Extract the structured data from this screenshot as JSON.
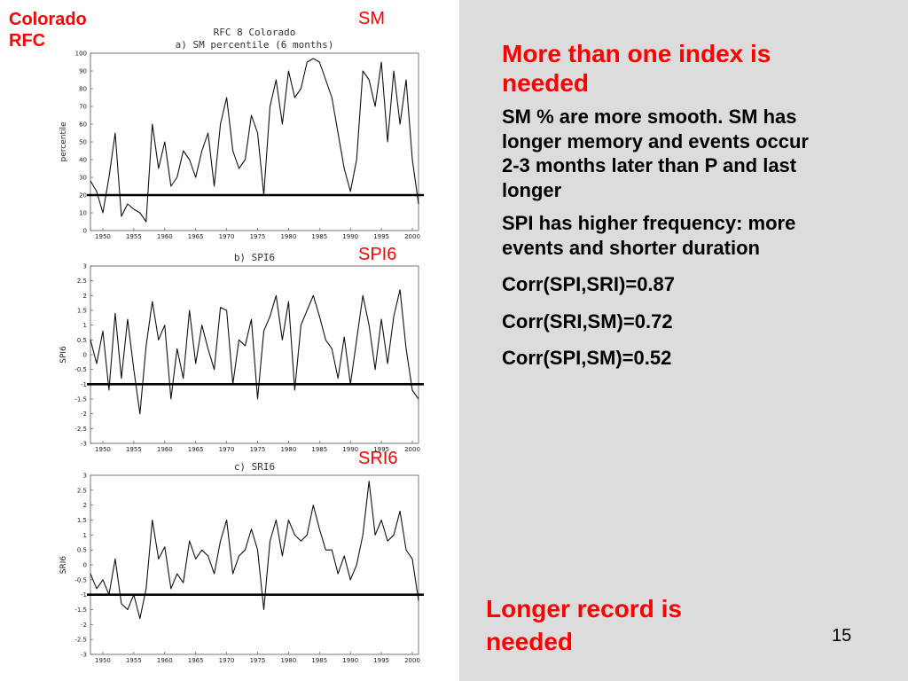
{
  "slide": {
    "rfc_label_1": "Colorado",
    "rfc_label_2": "RFC",
    "tag_sm": "SM",
    "tag_spi": "SPI6",
    "tag_sri": "SRI6",
    "heading": "More than one index is needed",
    "para1": "SM % are more smooth. SM has longer memory and events occur 2-3 months later than P  and last longer",
    "para2": "SPI has higher frequency: more events and shorter duration",
    "corr1": "Corr(SPI,SRI)=0.87",
    "corr2": "Corr(SRI,SM)=0.72",
    "corr3": "Corr(SPI,SM)=0.52",
    "footer": "Longer record is needed",
    "page_number": "15",
    "accent_color": "#ff0000",
    "panel_color": "#dcdcdc"
  },
  "chart_data": [
    {
      "type": "line",
      "title": "RFC 8 Colorado",
      "subtitle": "a)  SM  percentile (6 months)",
      "ylabel": "percentile",
      "xlabel": "",
      "xlim": [
        1948,
        2001
      ],
      "ylim": [
        0,
        100
      ],
      "yticks": [
        0,
        10,
        20,
        30,
        40,
        50,
        60,
        70,
        80,
        90,
        100
      ],
      "xticks": [
        1950,
        1955,
        1960,
        1965,
        1970,
        1975,
        1980,
        1985,
        1990,
        1995,
        2000
      ],
      "threshold": 20,
      "grid": false,
      "x": [
        1948,
        1949,
        1950,
        1951,
        1952,
        1953,
        1954,
        1955,
        1956,
        1957,
        1958,
        1959,
        1960,
        1961,
        1962,
        1963,
        1964,
        1965,
        1966,
        1967,
        1968,
        1969,
        1970,
        1971,
        1972,
        1973,
        1974,
        1975,
        1976,
        1977,
        1978,
        1979,
        1980,
        1981,
        1982,
        1983,
        1984,
        1985,
        1986,
        1987,
        1988,
        1989,
        1990,
        1991,
        1992,
        1993,
        1994,
        1995,
        1996,
        1997,
        1998,
        1999,
        2000,
        2001
      ],
      "series": [
        {
          "values": [
            28,
            22,
            10,
            30,
            55,
            8,
            15,
            12,
            10,
            5,
            60,
            35,
            50,
            25,
            30,
            45,
            40,
            30,
            45,
            55,
            25,
            60,
            75,
            45,
            35,
            40,
            65,
            55,
            20,
            70,
            85,
            60,
            90,
            75,
            80,
            95,
            97,
            95,
            85,
            75,
            55,
            35,
            22,
            40,
            90,
            85,
            70,
            95,
            50,
            90,
            60,
            85,
            40,
            15
          ]
        }
      ]
    },
    {
      "type": "line",
      "title": "",
      "subtitle": "b)  SPI6",
      "ylabel": "SPI6",
      "xlabel": "",
      "xlim": [
        1948,
        2001
      ],
      "ylim": [
        -3,
        3
      ],
      "yticks": [
        -3,
        -2.5,
        -2,
        -1.5,
        -1,
        -0.5,
        0,
        0.5,
        1,
        1.5,
        2,
        2.5,
        3
      ],
      "xticks": [
        1950,
        1955,
        1960,
        1965,
        1970,
        1975,
        1980,
        1985,
        1990,
        1995,
        2000
      ],
      "threshold": -1,
      "grid": false,
      "x": [
        1948,
        1949,
        1950,
        1951,
        1952,
        1953,
        1954,
        1955,
        1956,
        1957,
        1958,
        1959,
        1960,
        1961,
        1962,
        1963,
        1964,
        1965,
        1966,
        1967,
        1968,
        1969,
        1970,
        1971,
        1972,
        1973,
        1974,
        1975,
        1976,
        1977,
        1978,
        1979,
        1980,
        1981,
        1982,
        1983,
        1984,
        1985,
        1986,
        1987,
        1988,
        1989,
        1990,
        1991,
        1992,
        1993,
        1994,
        1995,
        1996,
        1997,
        1998,
        1999,
        2000,
        2001
      ],
      "series": [
        {
          "values": [
            0.5,
            -0.3,
            0.8,
            -1.2,
            1.4,
            -0.8,
            1.2,
            -0.5,
            -2.0,
            0.3,
            1.8,
            0.5,
            1.0,
            -1.5,
            0.2,
            -0.8,
            1.5,
            -0.3,
            1.0,
            0.2,
            -0.5,
            1.6,
            1.5,
            -1.0,
            0.5,
            0.3,
            1.2,
            -1.5,
            0.8,
            1.3,
            2.0,
            0.5,
            1.8,
            -1.2,
            1.0,
            1.5,
            2.0,
            1.3,
            0.5,
            0.2,
            -0.8,
            0.6,
            -1.0,
            0.5,
            2.0,
            1.0,
            -0.5,
            1.2,
            -0.3,
            1.3,
            2.2,
            0.2,
            -1.2,
            -1.5
          ]
        }
      ]
    },
    {
      "type": "line",
      "title": "",
      "subtitle": "c)  SRI6",
      "ylabel": "SRI6",
      "xlabel": "",
      "xlim": [
        1948,
        2001
      ],
      "ylim": [
        -3,
        3
      ],
      "yticks": [
        -3,
        -2.5,
        -2,
        -1.5,
        -1,
        -0.5,
        0,
        0.5,
        1,
        1.5,
        2,
        2.5,
        3
      ],
      "xticks": [
        1950,
        1955,
        1960,
        1965,
        1970,
        1975,
        1980,
        1985,
        1990,
        1995,
        2000
      ],
      "threshold": -1,
      "grid": false,
      "x": [
        1948,
        1949,
        1950,
        1951,
        1952,
        1953,
        1954,
        1955,
        1956,
        1957,
        1958,
        1959,
        1960,
        1961,
        1962,
        1963,
        1964,
        1965,
        1966,
        1967,
        1968,
        1969,
        1970,
        1971,
        1972,
        1973,
        1974,
        1975,
        1976,
        1977,
        1978,
        1979,
        1980,
        1981,
        1982,
        1983,
        1984,
        1985,
        1986,
        1987,
        1988,
        1989,
        1990,
        1991,
        1992,
        1993,
        1994,
        1995,
        1996,
        1997,
        1998,
        1999,
        2000,
        2001
      ],
      "series": [
        {
          "values": [
            -0.3,
            -0.8,
            -0.5,
            -1.0,
            0.2,
            -1.3,
            -1.5,
            -1.0,
            -1.8,
            -0.8,
            1.5,
            0.2,
            0.6,
            -0.8,
            -0.3,
            -0.6,
            0.8,
            0.2,
            0.5,
            0.3,
            -0.3,
            0.8,
            1.5,
            -0.3,
            0.3,
            0.5,
            1.2,
            0.5,
            -1.5,
            0.8,
            1.5,
            0.3,
            1.5,
            1.0,
            0.8,
            1.0,
            2.0,
            1.2,
            0.5,
            0.5,
            -0.3,
            0.3,
            -0.5,
            0.0,
            1.0,
            2.8,
            1.0,
            1.5,
            0.8,
            1.0,
            1.8,
            0.5,
            0.2,
            -1.2
          ]
        }
      ]
    }
  ]
}
